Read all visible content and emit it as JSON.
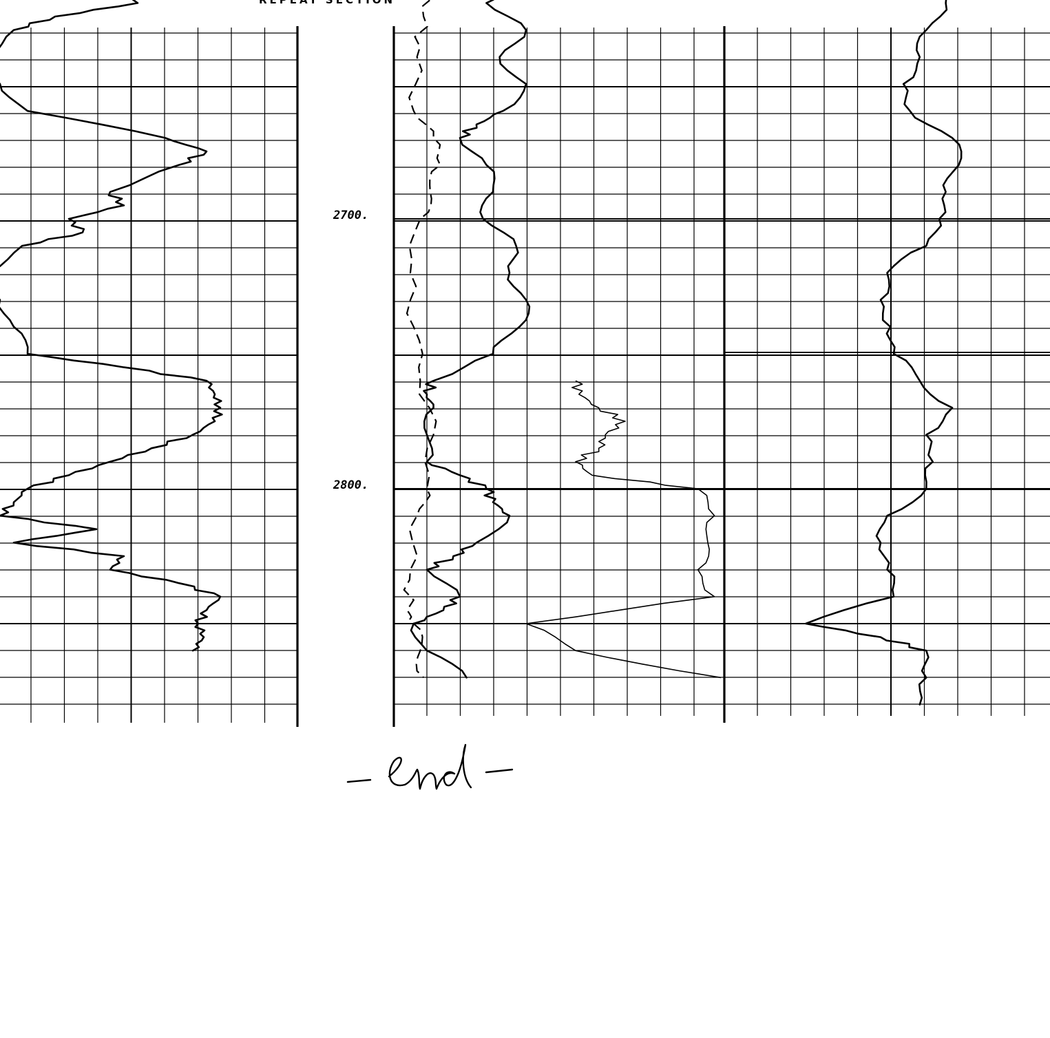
{
  "header": {
    "title": "REPEAT SECTION"
  },
  "annotation": {
    "end_note": "-end-"
  },
  "chart_data": {
    "type": "line",
    "title": "REPEAT SECTION",
    "xlabel": "",
    "ylabel": "",
    "depth_axis": {
      "ticks": [
        "2700.",
        "2800."
      ],
      "ylim": [
        2600,
        2880
      ],
      "direction": "down"
    },
    "tracks": [
      {
        "name": "",
        "series": [
          {
            "name": "",
            "style": "solid",
            "depth": [
              2610,
              2615,
              2620,
              2625,
              2630,
              2640,
              2650,
              2660,
              2670,
              2675,
              2680,
              2690,
              2695,
              2700,
              2705,
              2710,
              2720,
              2730,
              2740,
              2750,
              2755,
              2760,
              2765,
              2770,
              2775,
              2780,
              2785,
              2790,
              2795,
              2800,
              2805,
              2810,
              2815,
              2820,
              2825,
              2830,
              2835,
              2840,
              2845,
              2850,
              2855,
              2860
            ],
            "value": [
              0.12,
              0.45,
              0.5,
              0.2,
              0.05,
              -0.05,
              0.0,
              0.1,
              0.6,
              0.75,
              0.65,
              0.4,
              0.45,
              0.25,
              0.3,
              0.08,
              -0.05,
              0.0,
              0.05,
              0.1,
              0.45,
              0.75,
              0.78,
              0.8,
              0.78,
              0.7,
              0.55,
              0.4,
              0.25,
              0.1,
              0.05,
              0.0,
              0.35,
              0.05,
              0.45,
              0.4,
              0.65,
              0.8,
              0.75,
              0.72,
              0.74,
              0.7
            ]
          }
        ]
      },
      {
        "name": "",
        "series": [
          {
            "name": "",
            "style": "dashed",
            "depth": [
              2610,
              2625,
              2640,
              2660,
              2670,
              2680,
              2690,
              2700,
              2720,
              2740,
              2760,
              2780,
              2800,
              2810,
              2830,
              2845,
              2850,
              2860,
              2870
            ],
            "value": [
              0.12,
              0.09,
              0.07,
              0.06,
              0.12,
              0.14,
              0.11,
              0.08,
              0.05,
              0.06,
              0.08,
              0.12,
              0.1,
              0.07,
              0.05,
              0.04,
              0.06,
              0.08,
              0.09
            ]
          },
          {
            "name": "",
            "style": "solid",
            "depth": [
              2610,
              2615,
              2620,
              2630,
              2640,
              2650,
              2660,
              2665,
              2670,
              2680,
              2690,
              2700,
              2710,
              2720,
              2730,
              2740,
              2750,
              2760,
              2765,
              2770,
              2780,
              2790,
              2795,
              2800,
              2805,
              2810,
              2820,
              2825,
              2830,
              2840,
              2845,
              2850,
              2860,
              2870
            ],
            "value": [
              0.35,
              0.3,
              0.28,
              0.4,
              0.32,
              0.4,
              0.33,
              0.25,
              0.2,
              0.28,
              0.3,
              0.27,
              0.37,
              0.35,
              0.4,
              0.38,
              0.3,
              0.12,
              0.1,
              0.12,
              0.1,
              0.1,
              0.2,
              0.28,
              0.3,
              0.35,
              0.25,
              0.18,
              0.1,
              0.2,
              0.15,
              0.06,
              0.1,
              0.22
            ]
          },
          {
            "name": "",
            "style": "solid",
            "depth": [
              2760,
              2765,
              2770,
              2775,
              2780,
              2785,
              2790,
              2795,
              2800,
              2810,
              2820,
              2830,
              2840,
              2850,
              2860,
              2870
            ],
            "value": [
              0.55,
              0.56,
              0.62,
              0.7,
              0.64,
              0.62,
              0.55,
              0.6,
              0.92,
              0.97,
              0.95,
              0.92,
              0.97,
              0.4,
              0.55,
              0.99
            ]
          }
        ]
      },
      {
        "name": "",
        "series": [
          {
            "name": "",
            "style": "solid",
            "depth": [
              2610,
              2620,
              2630,
              2640,
              2650,
              2660,
              2670,
              2680,
              2690,
              2700,
              2710,
              2720,
              2730,
              2740,
              2750,
              2760,
              2770,
              2780,
              2790,
              2800,
              2810,
              2820,
              2830,
              2840,
              2850,
              2855,
              2860,
              2870,
              2880
            ],
            "value": [
              0.65,
              0.68,
              0.62,
              0.6,
              0.55,
              0.57,
              0.7,
              0.72,
              0.68,
              0.66,
              0.62,
              0.5,
              0.48,
              0.51,
              0.52,
              0.6,
              0.7,
              0.62,
              0.64,
              0.62,
              0.5,
              0.48,
              0.5,
              0.52,
              0.25,
              0.48,
              0.62,
              0.62,
              0.6
            ]
          }
        ]
      }
    ]
  }
}
